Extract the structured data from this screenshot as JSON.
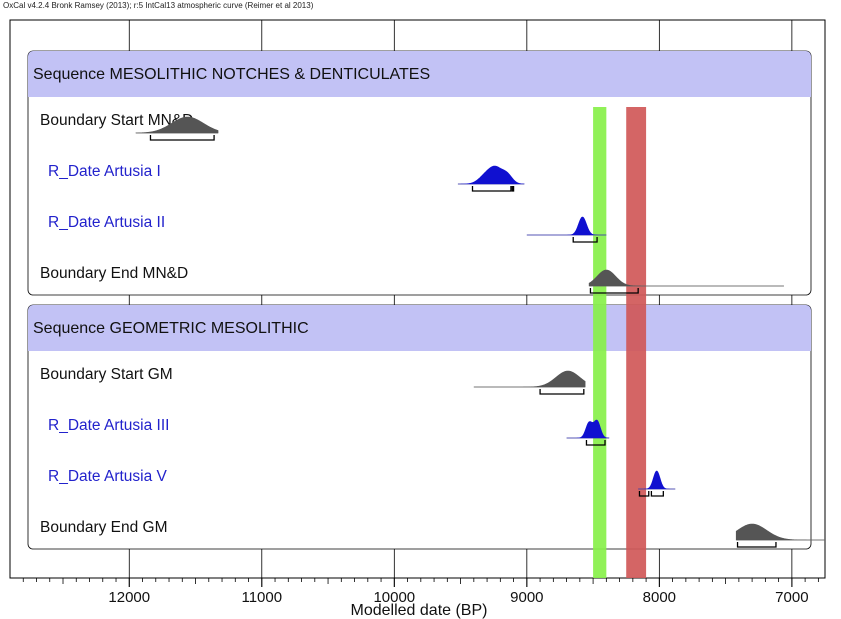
{
  "header": "OxCal v4.2.4 Bronk Ramsey (2013); r:5 IntCal13 atmospheric curve (Reimer et al 2013)",
  "chart_data": {
    "type": "density-ridges",
    "xlabel": "Modelled date (BP)",
    "x_ticks": [
      "12000",
      "11000",
      "10000",
      "9000",
      "8000",
      "7000"
    ],
    "xlim": [
      12900,
      6750
    ],
    "colors": {
      "boundary": "#555555",
      "rdate": "#1010d0",
      "sequence_band": "#c2c2f5",
      "green_band": "#88f04a",
      "red_band": "#d05858"
    },
    "bands": [
      {
        "color": "green",
        "from": 8500,
        "to": 8400
      },
      {
        "color": "red",
        "from": 8250,
        "to": 8100
      }
    ],
    "sequences": [
      {
        "label": "Sequence MESOLITHIC NOTCHES & DENTICULATES",
        "items": [
          {
            "label": "Boundary Start MN&D",
            "kind": "boundary",
            "peaks": [
              [
                11560,
                120,
                1.0
              ]
            ],
            "tail": [
              11950,
              11330
            ],
            "range": [
              [
                11840,
                11360
              ]
            ]
          },
          {
            "label": "R_Date Artusia I",
            "kind": "rdate",
            "peaks": [
              [
                9300,
                55,
                0.75
              ],
              [
                9230,
                45,
                0.9
              ],
              [
                9150,
                40,
                0.7
              ]
            ],
            "tail": [
              9520,
              9020
            ],
            "range": [
              [
                9410,
                9120
              ],
              [
                9110,
                9100
              ]
            ]
          },
          {
            "label": "R_Date Artusia II",
            "kind": "rdate",
            "peaks": [
              [
                8580,
                30,
                1.0
              ]
            ],
            "tail": [
              9000,
              8400
            ],
            "range": [
              [
                8650,
                8470
              ]
            ]
          },
          {
            "label": "Boundary End MN&D",
            "kind": "boundary",
            "peaks": [
              [
                8400,
                70,
                1.0
              ]
            ],
            "tail": [
              8530,
              7060
            ],
            "range": [
              [
                8520,
                8160
              ]
            ]
          }
        ]
      },
      {
        "label": "Sequence GEOMETRIC MESOLITHIC",
        "items": [
          {
            "label": "Boundary Start GM",
            "kind": "boundary",
            "peaks": [
              [
                8690,
                90,
                1.0
              ]
            ],
            "tail": [
              9400,
              8560
            ],
            "range": [
              [
                8900,
                8570
              ]
            ]
          },
          {
            "label": "R_Date Artusia III",
            "kind": "rdate",
            "peaks": [
              [
                8530,
                25,
                0.9
              ],
              [
                8470,
                25,
                1.0
              ]
            ],
            "tail": [
              8700,
              8380
            ],
            "range": [
              [
                8550,
                8410
              ]
            ]
          },
          {
            "label": "R_Date Artusia V",
            "kind": "rdate",
            "peaks": [
              [
                8020,
                25,
                1.0
              ]
            ],
            "tail": [
              8160,
              7880
            ],
            "range": [
              [
                8150,
                8080
              ],
              [
                8060,
                7970
              ]
            ]
          },
          {
            "label": "Boundary End GM",
            "kind": "boundary",
            "peaks": [
              [
                7300,
                110,
                1.0
              ]
            ],
            "tail": [
              7420,
              6750
            ],
            "range": [
              [
                7410,
                7120
              ]
            ]
          }
        ]
      }
    ]
  }
}
